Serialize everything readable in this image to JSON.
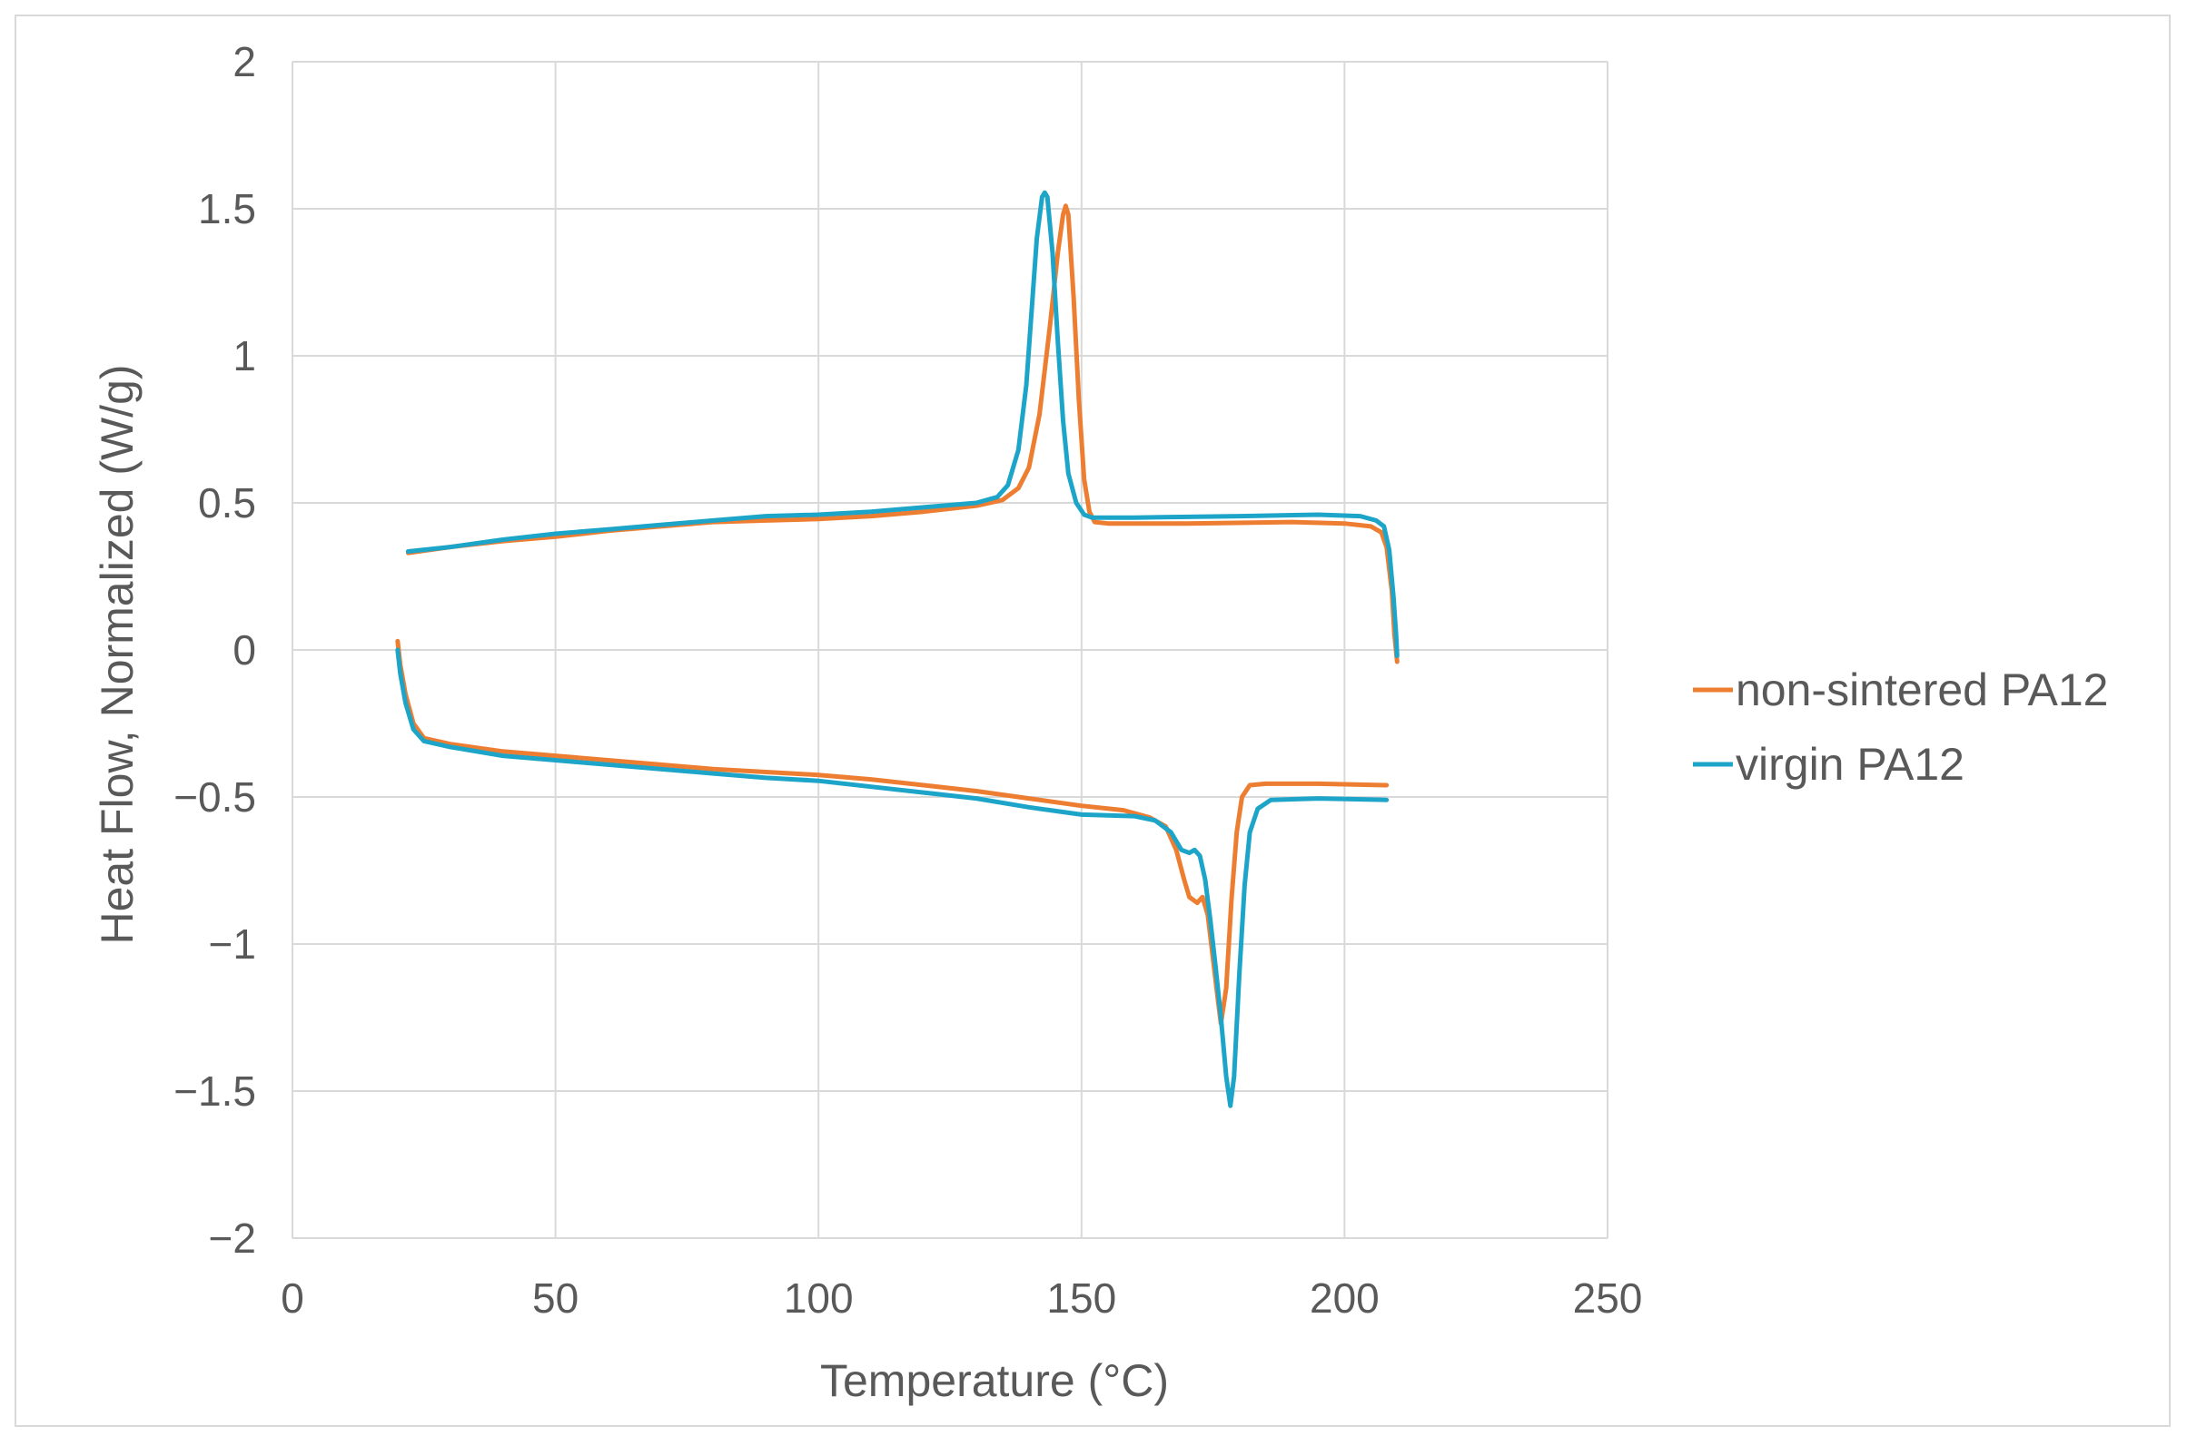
{
  "chart_data": {
    "type": "line",
    "title": "",
    "xlabel": "Temperature  (°C)",
    "ylabel": "Heat Flow, Normalized (W/g)",
    "xlim": [
      0,
      250
    ],
    "ylim": [
      -2,
      2
    ],
    "x_ticks": [
      0,
      50,
      100,
      150,
      200,
      250
    ],
    "y_ticks": [
      2,
      1.5,
      1,
      0.5,
      0,
      -0.5,
      -1,
      -1.5,
      -2
    ],
    "x_tick_labels": [
      "0",
      "50",
      "100",
      "150",
      "200",
      "250"
    ],
    "y_tick_labels": [
      "2",
      "1.5",
      "1",
      "0.5",
      "0",
      "−0.5",
      "−1",
      "−1.5",
      "−2"
    ],
    "grid": true,
    "legend_position": "right",
    "series": [
      {
        "name": "non-sintered PA12",
        "color": "#ED7D31",
        "segments": [
          [
            [
              22,
              0.33
            ],
            [
              30,
              0.35
            ],
            [
              40,
              0.37
            ],
            [
              50,
              0.385
            ],
            [
              60,
              0.405
            ],
            [
              70,
              0.42
            ],
            [
              80,
              0.435
            ],
            [
              90,
              0.44
            ],
            [
              100,
              0.445
            ],
            [
              110,
              0.455
            ],
            [
              120,
              0.47
            ],
            [
              130,
              0.49
            ],
            [
              135,
              0.51
            ],
            [
              138,
              0.55
            ],
            [
              140,
              0.62
            ],
            [
              142,
              0.8
            ],
            [
              144,
              1.1
            ],
            [
              145.5,
              1.35
            ],
            [
              146.5,
              1.48
            ],
            [
              147,
              1.51
            ],
            [
              147.5,
              1.48
            ],
            [
              148.5,
              1.2
            ],
            [
              149.5,
              0.85
            ],
            [
              150.5,
              0.58
            ],
            [
              151.5,
              0.47
            ],
            [
              152.5,
              0.435
            ],
            [
              155,
              0.43
            ],
            [
              170,
              0.43
            ],
            [
              190,
              0.435
            ],
            [
              200,
              0.43
            ],
            [
              205,
              0.42
            ],
            [
              207,
              0.4
            ],
            [
              208,
              0.35
            ],
            [
              209,
              0.2
            ],
            [
              209.5,
              0.05
            ],
            [
              210,
              -0.04
            ]
          ],
          [
            [
              20,
              0.03
            ],
            [
              20.5,
              -0.05
            ],
            [
              21.5,
              -0.15
            ],
            [
              23,
              -0.25
            ],
            [
              25,
              -0.3
            ],
            [
              30,
              -0.32
            ],
            [
              40,
              -0.345
            ],
            [
              50,
              -0.36
            ],
            [
              60,
              -0.375
            ],
            [
              70,
              -0.39
            ],
            [
              80,
              -0.405
            ],
            [
              90,
              -0.415
            ],
            [
              100,
              -0.425
            ],
            [
              110,
              -0.44
            ],
            [
              120,
              -0.46
            ],
            [
              130,
              -0.48
            ],
            [
              140,
              -0.505
            ],
            [
              150,
              -0.53
            ],
            [
              158,
              -0.545
            ],
            [
              163,
              -0.57
            ],
            [
              166,
              -0.6
            ],
            [
              168,
              -0.68
            ],
            [
              169.5,
              -0.78
            ],
            [
              170.5,
              -0.84
            ],
            [
              172,
              -0.86
            ],
            [
              173,
              -0.84
            ],
            [
              174,
              -0.9
            ],
            [
              175,
              -1.05
            ],
            [
              176,
              -1.2
            ],
            [
              176.5,
              -1.27
            ],
            [
              177.5,
              -1.15
            ],
            [
              178.5,
              -0.85
            ],
            [
              179.5,
              -0.62
            ],
            [
              180.5,
              -0.5
            ],
            [
              182,
              -0.46
            ],
            [
              185,
              -0.455
            ],
            [
              195,
              -0.455
            ],
            [
              208,
              -0.46
            ]
          ]
        ]
      },
      {
        "name": "virgin PA12",
        "color": "#1CA5C8",
        "segments": [
          [
            [
              22,
              0.335
            ],
            [
              30,
              0.35
            ],
            [
              40,
              0.375
            ],
            [
              50,
              0.395
            ],
            [
              60,
              0.41
            ],
            [
              70,
              0.425
            ],
            [
              80,
              0.44
            ],
            [
              90,
              0.455
            ],
            [
              100,
              0.46
            ],
            [
              110,
              0.47
            ],
            [
              120,
              0.485
            ],
            [
              130,
              0.5
            ],
            [
              134,
              0.52
            ],
            [
              136,
              0.56
            ],
            [
              138,
              0.68
            ],
            [
              139.5,
              0.9
            ],
            [
              140.5,
              1.15
            ],
            [
              141.5,
              1.4
            ],
            [
              142.5,
              1.54
            ],
            [
              143,
              1.555
            ],
            [
              143.5,
              1.54
            ],
            [
              144.5,
              1.35
            ],
            [
              145.5,
              1.05
            ],
            [
              146.5,
              0.78
            ],
            [
              147.5,
              0.6
            ],
            [
              149,
              0.5
            ],
            [
              150.5,
              0.46
            ],
            [
              152,
              0.45
            ],
            [
              160,
              0.45
            ],
            [
              180,
              0.455
            ],
            [
              195,
              0.46
            ],
            [
              203,
              0.455
            ],
            [
              206,
              0.44
            ],
            [
              207.5,
              0.42
            ],
            [
              208.5,
              0.34
            ],
            [
              209.3,
              0.18
            ],
            [
              209.8,
              0.05
            ],
            [
              210,
              -0.02
            ]
          ],
          [
            [
              20,
              0.0
            ],
            [
              20.5,
              -0.08
            ],
            [
              21.5,
              -0.18
            ],
            [
              23,
              -0.27
            ],
            [
              25,
              -0.31
            ],
            [
              30,
              -0.33
            ],
            [
              40,
              -0.36
            ],
            [
              50,
              -0.375
            ],
            [
              60,
              -0.39
            ],
            [
              70,
              -0.405
            ],
            [
              80,
              -0.42
            ],
            [
              90,
              -0.435
            ],
            [
              100,
              -0.445
            ],
            [
              110,
              -0.465
            ],
            [
              120,
              -0.485
            ],
            [
              130,
              -0.505
            ],
            [
              140,
              -0.535
            ],
            [
              150,
              -0.56
            ],
            [
              160,
              -0.565
            ],
            [
              164,
              -0.58
            ],
            [
              167,
              -0.62
            ],
            [
              169,
              -0.68
            ],
            [
              170.5,
              -0.69
            ],
            [
              171.5,
              -0.68
            ],
            [
              172.5,
              -0.7
            ],
            [
              173.5,
              -0.78
            ],
            [
              174.5,
              -0.92
            ],
            [
              175.5,
              -1.08
            ],
            [
              176.5,
              -1.25
            ],
            [
              177.5,
              -1.45
            ],
            [
              178.3,
              -1.55
            ],
            [
              179,
              -1.45
            ],
            [
              180,
              -1.1
            ],
            [
              181,
              -0.8
            ],
            [
              182,
              -0.62
            ],
            [
              183.5,
              -0.54
            ],
            [
              186,
              -0.51
            ],
            [
              195,
              -0.505
            ],
            [
              208,
              -0.51
            ]
          ]
        ]
      }
    ]
  }
}
